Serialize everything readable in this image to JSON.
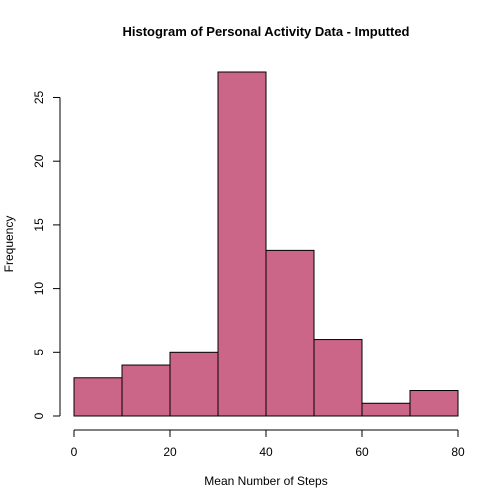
{
  "chart_data": {
    "type": "bar",
    "title": "Histogram of Personal Activity Data - Imputted",
    "xlabel": "Mean Number of Steps",
    "ylabel": "Frequency",
    "bins": [
      {
        "start": 0,
        "end": 10,
        "count": 3
      },
      {
        "start": 10,
        "end": 20,
        "count": 4
      },
      {
        "start": 20,
        "end": 30,
        "count": 5
      },
      {
        "start": 30,
        "end": 40,
        "count": 27
      },
      {
        "start": 40,
        "end": 50,
        "count": 13
      },
      {
        "start": 50,
        "end": 60,
        "count": 6
      },
      {
        "start": 60,
        "end": 70,
        "count": 1
      },
      {
        "start": 70,
        "end": 80,
        "count": 2
      }
    ],
    "xlim": [
      0,
      80
    ],
    "ylim": [
      0,
      25
    ],
    "x_ticks": [
      0,
      20,
      40,
      60,
      80
    ],
    "y_ticks": [
      0,
      5,
      10,
      15,
      20,
      25
    ],
    "bar_color": "#cc6688",
    "grid": false
  }
}
